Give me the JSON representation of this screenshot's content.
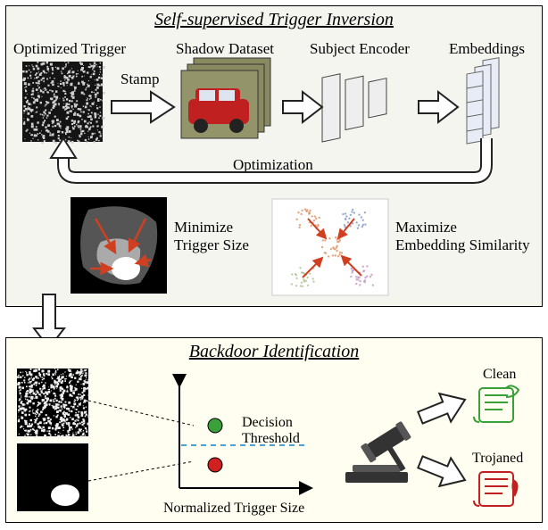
{
  "top_panel": {
    "bg": "#f5f5f0",
    "border": "#000",
    "title": "Self-supervised Trigger Inversion",
    "labels": {
      "optimized_trigger": "Optimized Trigger",
      "shadow_dataset": "Shadow Dataset",
      "subject_encoder": "Subject Encoder",
      "embeddings": "Embeddings",
      "stamp": "Stamp",
      "optimization": "Optimization",
      "min_trig": "Minimize\nTrigger Size",
      "max_emb": "Maximize\nEmbedding Similarity"
    }
  },
  "bottom_panel": {
    "bg": "#fffef0",
    "border": "#000",
    "title": "Backdoor Identification",
    "labels": {
      "decision": "Decision\nThreshold",
      "norm_trig": "Normalized Trigger Size",
      "clean": "Clean",
      "trojaned": "Trojaned"
    }
  },
  "colors": {
    "arrow_outline": "#222",
    "arrow_fill": "#fff",
    "noise_dark": "#141414",
    "noise_light": "#cfcfcf",
    "car_red": "#c02020",
    "car_bg": "#8a8a60",
    "encoder_fill": "#eee",
    "encoder_stroke": "#444",
    "emb_fill": "#e8ecf6",
    "emb_stroke": "#666",
    "red_arrow": "#d04020",
    "green_dot": "#3aa03a",
    "red_dot": "#d02020",
    "threshold": "#4aa0d0",
    "gavel": "#333",
    "clean": "#3aa03a",
    "trojan": "#c02020",
    "blob_bg": "#000",
    "blob_mid": "#555",
    "blob_light": "#aaa",
    "blob_white": "#fff"
  }
}
